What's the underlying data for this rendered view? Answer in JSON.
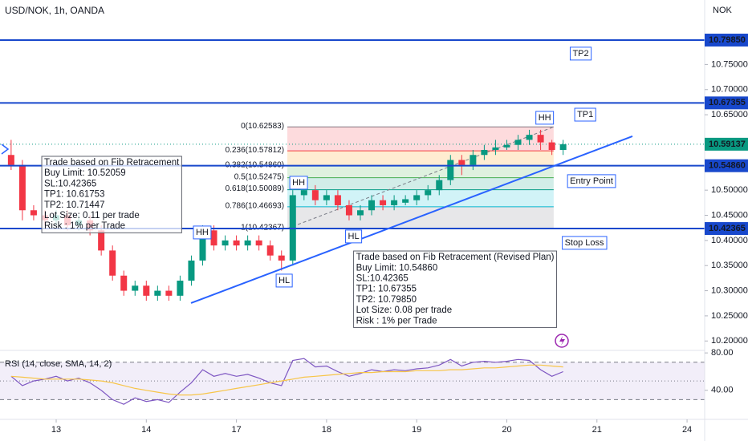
{
  "chart_data": [
    {
      "type": "candlestick",
      "title": "USD/NOK, 1h, OANDA",
      "currency": "NOK",
      "x": [
        -0.5,
        -0.375,
        -0.25,
        -0.125,
        0,
        0.125,
        0.25,
        0.375,
        0.5,
        0.625,
        0.75,
        0.875,
        1,
        1.125,
        1.25,
        1.375,
        1.5,
        1.625,
        1.75,
        1.875,
        2,
        2.125,
        2.25,
        2.375,
        2.5,
        2.625,
        2.75,
        2.875,
        3,
        3.125,
        3.25,
        3.375,
        3.5,
        3.625,
        3.75,
        3.875,
        4,
        4.125,
        4.25,
        4.375,
        4.5,
        4.625,
        4.75,
        4.875,
        5,
        5.125,
        5.25,
        5.375,
        5.5,
        5.625
      ],
      "opens": [
        10.57,
        10.55,
        10.46,
        10.45,
        10.44,
        10.45,
        10.43,
        10.44,
        10.42,
        10.38,
        10.33,
        10.3,
        10.31,
        10.29,
        10.3,
        10.29,
        10.32,
        10.36,
        10.42,
        10.39,
        10.4,
        10.39,
        10.4,
        10.39,
        10.37,
        10.36,
        10.49,
        10.5,
        10.48,
        10.49,
        10.47,
        10.45,
        10.46,
        10.48,
        10.47,
        10.475,
        10.48,
        10.49,
        10.5,
        10.52,
        10.56,
        10.55,
        10.57,
        10.58,
        10.585,
        10.59,
        10.6,
        10.61,
        10.595,
        10.58
      ],
      "highs": [
        10.6,
        10.56,
        10.47,
        10.46,
        10.46,
        10.46,
        10.45,
        10.45,
        10.43,
        10.39,
        10.34,
        10.32,
        10.32,
        10.31,
        10.31,
        10.33,
        10.37,
        10.43,
        10.43,
        10.41,
        10.41,
        10.41,
        10.41,
        10.4,
        10.38,
        10.5,
        10.51,
        10.51,
        10.5,
        10.5,
        10.48,
        10.47,
        10.49,
        10.49,
        10.49,
        10.49,
        10.5,
        10.51,
        10.53,
        10.57,
        10.57,
        10.58,
        10.59,
        10.6,
        10.6,
        10.61,
        10.62,
        10.62,
        10.6,
        10.6
      ],
      "lows": [
        10.54,
        10.44,
        10.44,
        10.43,
        10.43,
        10.42,
        10.42,
        10.41,
        10.37,
        10.32,
        10.29,
        10.29,
        10.28,
        10.28,
        10.28,
        10.28,
        10.31,
        10.35,
        10.38,
        10.38,
        10.38,
        10.38,
        10.38,
        10.36,
        10.34,
        10.35,
        10.48,
        10.47,
        10.47,
        10.46,
        10.44,
        10.44,
        10.45,
        10.46,
        10.46,
        10.47,
        10.47,
        10.48,
        10.49,
        10.51,
        10.53,
        10.54,
        10.56,
        10.57,
        10.58,
        10.58,
        10.59,
        10.58,
        10.57,
        10.57
      ],
      "closes": [
        10.55,
        10.46,
        10.45,
        10.44,
        10.45,
        10.43,
        10.44,
        10.42,
        10.38,
        10.33,
        10.3,
        10.31,
        10.29,
        10.3,
        10.29,
        10.32,
        10.36,
        10.42,
        10.39,
        10.4,
        10.39,
        10.4,
        10.39,
        10.37,
        10.36,
        10.49,
        10.5,
        10.48,
        10.49,
        10.47,
        10.45,
        10.46,
        10.48,
        10.47,
        10.48,
        10.482,
        10.49,
        10.5,
        10.52,
        10.56,
        10.55,
        10.57,
        10.58,
        10.585,
        10.59,
        10.6,
        10.61,
        10.595,
        10.58,
        10.59137
      ],
      "up_color": "#089981",
      "down_color": "#f23645",
      "xlim": [
        -0.6234,
        7.1953
      ],
      "xticks": [
        {
          "value": 0,
          "label": "13"
        },
        {
          "value": 1,
          "label": "14"
        },
        {
          "value": 2,
          "label": "17"
        },
        {
          "value": 3,
          "label": "18"
        },
        {
          "value": 4,
          "label": "19"
        },
        {
          "value": 5,
          "label": "20"
        },
        {
          "value": 6,
          "label": "21"
        },
        {
          "value": 7,
          "label": "24"
        }
      ],
      "ylim": [
        10.1813,
        10.8782
      ],
      "yticks": [
        {
          "value": 10.75,
          "label": "10.75000"
        },
        {
          "value": 10.7,
          "label": "10.70000"
        },
        {
          "value": 10.65,
          "label": "10.65000"
        },
        {
          "value": 10.5,
          "label": "10.50000"
        },
        {
          "value": 10.45,
          "label": "10.45000"
        },
        {
          "value": 10.4,
          "label": "10.40000"
        },
        {
          "value": 10.35,
          "label": "10.35000"
        },
        {
          "value": 10.3,
          "label": "10.30000"
        },
        {
          "value": 10.25,
          "label": "10.25000"
        },
        {
          "value": 10.2,
          "label": "10.20000"
        }
      ],
      "last_price": {
        "value": 10.59137,
        "label": "10.59137",
        "color": "#089981"
      },
      "level_color": "#1848cc",
      "levels": [
        {
          "value": 10.7985,
          "label": "10.79850"
        },
        {
          "value": 10.67355,
          "label": "10.67355"
        },
        {
          "value": 10.5486,
          "label": "10.54860"
        },
        {
          "value": 10.42365,
          "label": "10.42365"
        }
      ],
      "fib": {
        "x": [
          2.565,
          5.52
        ],
        "levels": [
          {
            "value": 10.62583,
            "label": "0(10.62583)"
          },
          {
            "value": 10.57812,
            "label": "0.236(10.57812)"
          },
          {
            "value": 10.5486,
            "label": "0.382(10.54860)"
          },
          {
            "value": 10.52475,
            "label": "0.5(10.52475)"
          },
          {
            "value": 10.50089,
            "label": "0.618(10.50089)"
          },
          {
            "value": 10.46693,
            "label": "0.786(10.46693)"
          },
          {
            "value": 10.42367,
            "label": "1(10.42367)"
          }
        ],
        "colors": [
          "#787b86",
          "#f23645",
          "#ff9800",
          "#4caf50",
          "#089981",
          "#00bcd4",
          "#787b86"
        ]
      },
      "trendline": {
        "x": [
          1.496,
          6.394
        ],
        "y": [
          10.2754,
          10.6071
        ],
        "color": "#2962ff"
      },
      "annotations": [
        {
          "text": "HH",
          "x": 2.69,
          "y": 10.5146
        },
        {
          "text": "HH",
          "x": 1.62,
          "y": 10.4157
        },
        {
          "text": "HL",
          "x": 2.53,
          "y": 10.32
        },
        {
          "text": "HL",
          "x": 3.3,
          "y": 10.4078
        },
        {
          "text": "HH",
          "x": 5.42,
          "y": 10.6438
        },
        {
          "text": "TP2",
          "x": 5.82,
          "y": 10.7714
        },
        {
          "text": "TP1",
          "x": 5.87,
          "y": 10.65
        },
        {
          "text": "Entry Point",
          "x": 5.94,
          "y": 10.5178
        },
        {
          "text": "Stop Loss",
          "x": 5.86,
          "y": 10.395
        }
      ],
      "notes": [
        {
          "x": -0.16,
          "y": 10.5673,
          "lines": [
            "Trade based on Fib Retracement",
            "Buy Limit: 10.52059",
            "SL:10.42365",
            "TP1: 10.61753",
            "TP2: 10.71447",
            "Lot Size: 0.11 per trade",
            "Risk : 1% per Trade"
          ]
        },
        {
          "x": 3.3,
          "y": 10.379,
          "lines": [
            "Trade based on Fib Retracement (Revised Plan)",
            "Buy Limit: 10.54860",
            "SL:10.42365",
            "TP1: 10.67355",
            "TP2: 10.79850",
            "Lot Size: 0.08 per trade",
            "Risk : 1% per Trade"
          ]
        }
      ]
    },
    {
      "type": "line",
      "title": "RSI (14, close, SMA, 14, 2)",
      "x": [
        -0.5,
        -0.375,
        -0.25,
        -0.125,
        0,
        0.125,
        0.25,
        0.375,
        0.5,
        0.625,
        0.75,
        0.875,
        1,
        1.125,
        1.25,
        1.375,
        1.5,
        1.625,
        1.75,
        1.875,
        2,
        2.125,
        2.25,
        2.375,
        2.5,
        2.625,
        2.75,
        2.875,
        3,
        3.125,
        3.25,
        3.375,
        3.5,
        3.625,
        3.75,
        3.875,
        4,
        4.125,
        4.25,
        4.375,
        4.5,
        4.625,
        4.75,
        4.875,
        5,
        5.125,
        5.25,
        5.375,
        5.5,
        5.625
      ],
      "series": [
        {
          "color": "#7e57c2",
          "values": [
            55,
            45,
            50,
            52,
            55,
            50,
            53,
            48,
            40,
            30,
            25,
            32,
            28,
            30,
            27,
            38,
            48,
            62,
            55,
            58,
            55,
            57,
            53,
            48,
            45,
            72,
            74,
            65,
            66,
            60,
            55,
            58,
            62,
            60,
            62,
            61,
            63,
            64,
            67,
            73,
            66,
            70,
            71,
            70,
            71,
            73,
            72,
            62,
            55,
            60
          ]
        },
        {
          "color": "#f7c548",
          "values": [
            55,
            54,
            53,
            52,
            52,
            52,
            52,
            51,
            50,
            48,
            45,
            42,
            40,
            38,
            36,
            35,
            35,
            36,
            38,
            40,
            42,
            44,
            46,
            48,
            50,
            52,
            54,
            55,
            56,
            57,
            58,
            59,
            59,
            60,
            60,
            60,
            61,
            61,
            61,
            62,
            62,
            63,
            64,
            64,
            65,
            66,
            67,
            67,
            66,
            65
          ]
        }
      ],
      "ylim": [
        8.9,
        82.7
      ],
      "yticks": [
        {
          "value": 80,
          "label": "80.00"
        },
        {
          "value": 40,
          "label": "40.00"
        }
      ],
      "bands": [
        70,
        30
      ],
      "midline": 50,
      "band_color": "#7e57c2"
    }
  ]
}
